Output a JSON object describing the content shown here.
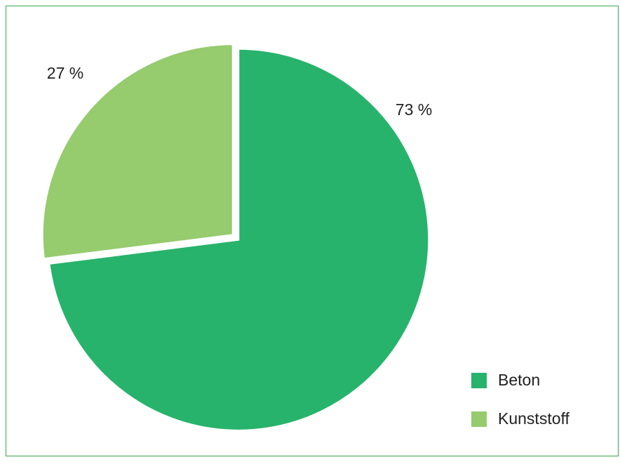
{
  "chart_data": {
    "type": "pie",
    "categories": [
      "Beton",
      "Kunststoff"
    ],
    "values": [
      73,
      27
    ],
    "value_labels": [
      "73 %",
      "27 %"
    ],
    "colors": [
      "#27b36b",
      "#96cb6e"
    ],
    "legend": "lower right"
  }
}
